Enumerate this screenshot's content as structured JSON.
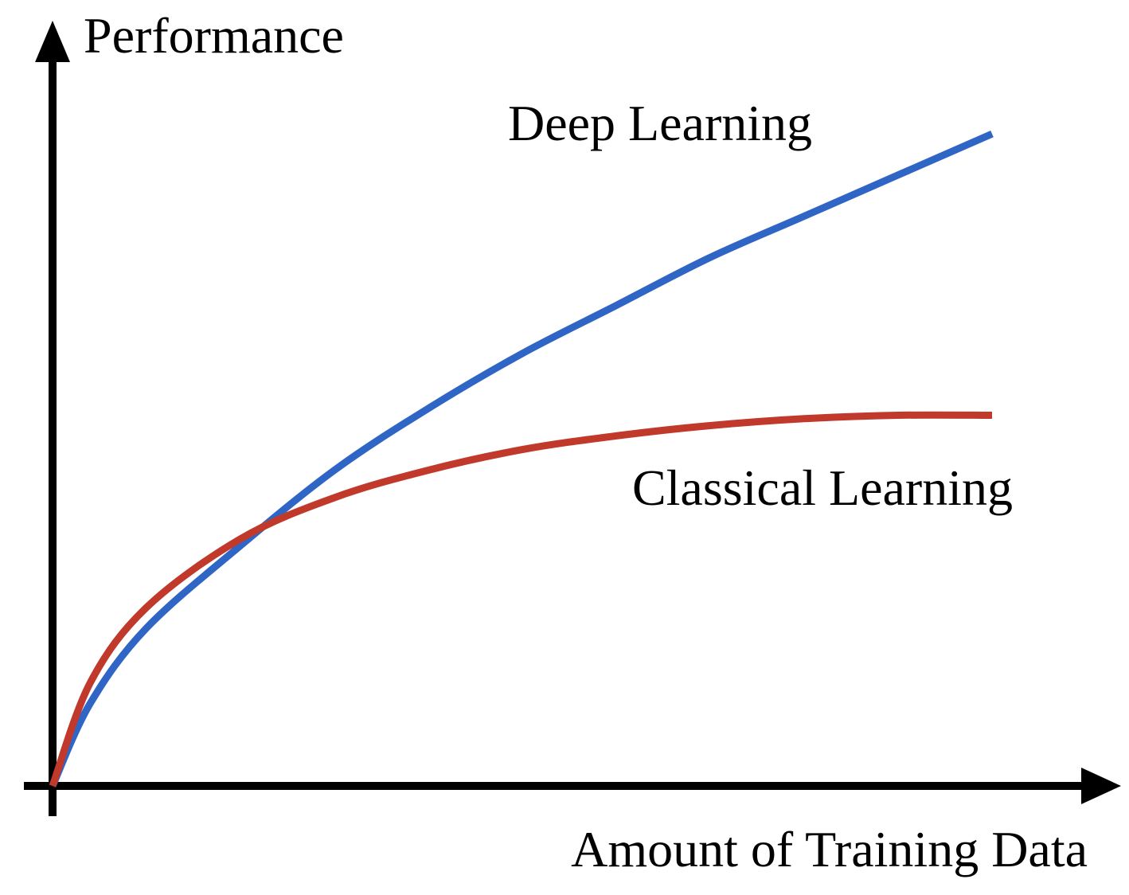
{
  "chart_data": {
    "type": "line",
    "ylabel": "Performance",
    "xlabel": "Amount of Training Data",
    "grid": false,
    "ticks": false,
    "xlim": [
      0,
      100
    ],
    "ylim": [
      0,
      100
    ],
    "series": [
      {
        "name": "Deep Learning",
        "color": "#2f66c6",
        "x": [
          0,
          4,
          10,
          20,
          30,
          40,
          50,
          60,
          70,
          80,
          90,
          100
        ],
        "y": [
          0,
          12,
          23,
          35,
          46,
          55,
          63,
          70,
          77,
          83,
          89,
          95
        ]
      },
      {
        "name": "Classical Learning",
        "color": "#c0392b",
        "x": [
          0,
          4,
          10,
          20,
          30,
          40,
          50,
          60,
          70,
          80,
          90,
          100
        ],
        "y": [
          0,
          15,
          26,
          36,
          42,
          46,
          49,
          51,
          52.5,
          53.5,
          54,
          54
        ]
      }
    ]
  }
}
